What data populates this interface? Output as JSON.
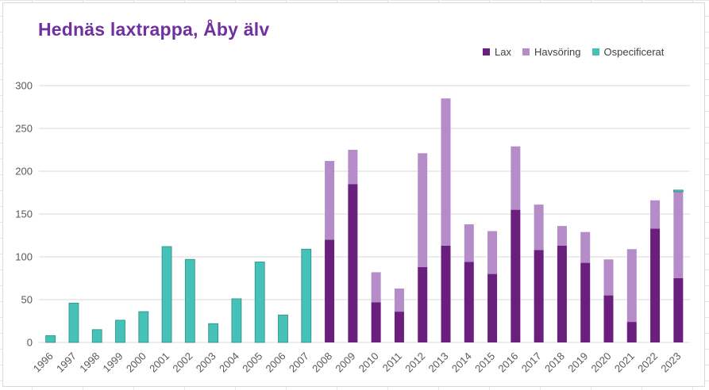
{
  "chart_data": {
    "type": "bar",
    "stacked": true,
    "title": "Hednäs laxtrappa, Åby älv",
    "xlabel": "",
    "ylabel": "",
    "ylim": [
      0,
      300
    ],
    "yticks": [
      0,
      50,
      100,
      150,
      200,
      250,
      300
    ],
    "grid": true,
    "legend_position": "top-right",
    "categories": [
      "1996",
      "1997",
      "1998",
      "1999",
      "2000",
      "2001",
      "2002",
      "2003",
      "2004",
      "2005",
      "2006",
      "2007",
      "2008",
      "2009",
      "2010",
      "2011",
      "2012",
      "2013",
      "2014",
      "2015",
      "2016",
      "2017",
      "2018",
      "2019",
      "2020",
      "2021",
      "2022",
      "2023"
    ],
    "series": [
      {
        "name": "Lax",
        "color": "#6a1f7f",
        "values": [
          0,
          0,
          0,
          0,
          0,
          0,
          0,
          0,
          0,
          0,
          0,
          0,
          120,
          185,
          47,
          36,
          88,
          113,
          94,
          80,
          155,
          108,
          113,
          93,
          55,
          24,
          133,
          75
        ]
      },
      {
        "name": "Havsöring",
        "color": "#b58cc8",
        "values": [
          0,
          0,
          0,
          0,
          0,
          0,
          0,
          0,
          0,
          0,
          0,
          0,
          92,
          40,
          35,
          27,
          133,
          172,
          44,
          50,
          74,
          53,
          23,
          36,
          42,
          85,
          33,
          101
        ]
      },
      {
        "name": "Ospecificerat",
        "color": "#45c1b8",
        "values": [
          8,
          46,
          15,
          26,
          36,
          112,
          97,
          22,
          51,
          94,
          32,
          109,
          0,
          0,
          0,
          0,
          0,
          0,
          0,
          0,
          0,
          0,
          0,
          0,
          0,
          0,
          0,
          2
        ]
      }
    ]
  }
}
